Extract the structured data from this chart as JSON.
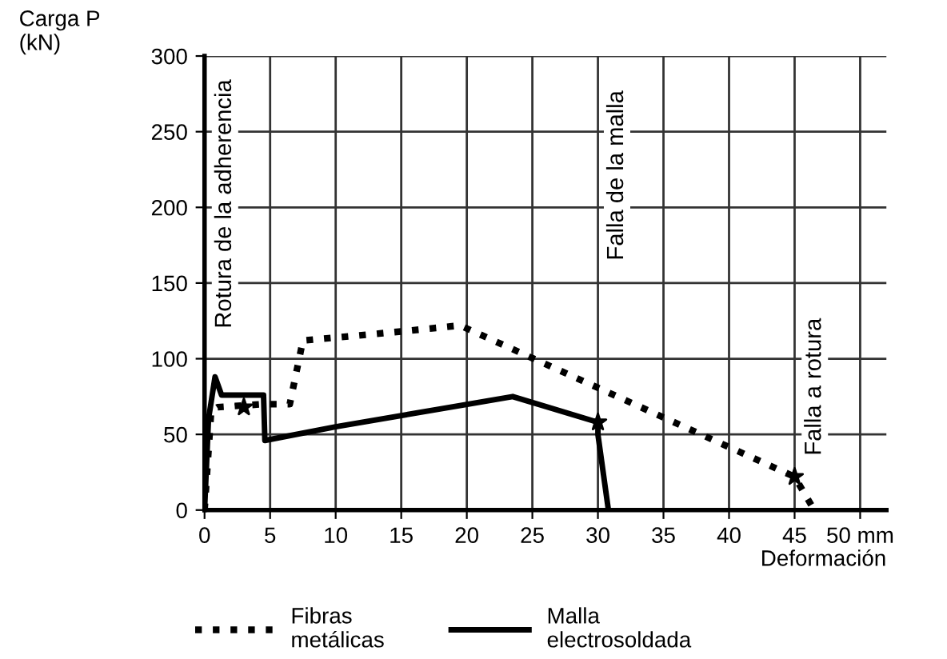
{
  "chart_data": {
    "type": "line",
    "ylabel": "Carga P\n(kN)",
    "xlabel": "Deformación",
    "xlim": [
      0,
      52
    ],
    "xticks": [
      0,
      5,
      10,
      15,
      20,
      25,
      30,
      35,
      40,
      45,
      {
        "value": 50,
        "label": "50 mm"
      }
    ],
    "ylim": [
      0,
      300
    ],
    "yticks": [
      0,
      50,
      100,
      150,
      200,
      250,
      300
    ],
    "grid": true,
    "legend": "bottom",
    "series": [
      {
        "name": "Fibras\nmetálicas",
        "color": "#000000",
        "line_style": "dotted",
        "x": [
          0,
          0.5,
          1,
          4.5,
          6.5,
          7.5,
          10,
          15,
          19.5,
          20,
          45,
          46.5
        ],
        "values": [
          0,
          65,
          68,
          70,
          70,
          112,
          114,
          118,
          122,
          120,
          22,
          0
        ]
      },
      {
        "name": "Malla\nelectrosoldada",
        "color": "#000000",
        "line_style": "solid",
        "x": [
          0,
          0.3,
          0.8,
          1.3,
          4.5,
          4.6,
          10,
          23.5,
          30,
          30,
          30.8
        ],
        "values": [
          0,
          60,
          88,
          76,
          76,
          46,
          55,
          75,
          58,
          50,
          0
        ]
      },
      {
        "type": "scatter",
        "marker": "star",
        "color": "#000000",
        "x": [
          3,
          30,
          45
        ],
        "values": [
          68,
          58,
          22
        ]
      }
    ],
    "annotations": [
      "Rotura de la adherencia",
      "Falla de la malla",
      "Falla a rotura"
    ]
  }
}
